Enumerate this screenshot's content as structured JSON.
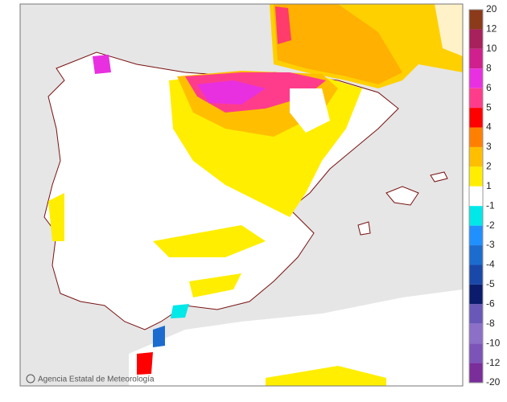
{
  "map": {
    "credit": "Agencia Estatal de Meteorología",
    "legend": {
      "labels": [
        20,
        12,
        10,
        8,
        6,
        5,
        4,
        3,
        2,
        1,
        -1,
        -2,
        -3,
        -4,
        -5,
        -6,
        -8,
        -10,
        -12,
        -20
      ],
      "colors": [
        "#8b3a1a",
        "#a8205c",
        "#d0208e",
        "#e830e0",
        "#ff3c8c",
        "#ff0000",
        "#ff8000",
        "#ffbf00",
        "#ffee00",
        "#ffffff",
        "#00e8e8",
        "#2090ff",
        "#1c6cd0",
        "#1a48a8",
        "#0c1c6c",
        "#6a58b8",
        "#8c70c8",
        "#7c54b8",
        "#7a2e9a"
      ]
    }
  }
}
